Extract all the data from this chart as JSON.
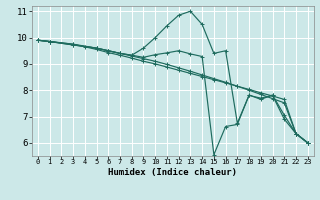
{
  "xlabel": "Humidex (Indice chaleur)",
  "ylabel": "",
  "bg_color": "#cce8e8",
  "grid_color": "#b8d8d8",
  "line_color": "#1e6b5e",
  "xlim": [
    -0.5,
    23.5
  ],
  "ylim": [
    5.5,
    11.2
  ],
  "xticks": [
    0,
    1,
    2,
    3,
    4,
    5,
    6,
    7,
    8,
    9,
    10,
    11,
    12,
    13,
    14,
    15,
    16,
    17,
    18,
    19,
    20,
    21,
    22,
    23
  ],
  "yticks": [
    6,
    7,
    8,
    9,
    10,
    11
  ],
  "lines": [
    {
      "x": [
        0,
        1,
        3,
        4,
        5,
        6,
        7,
        8,
        9,
        10,
        11,
        12,
        13,
        14,
        15,
        16,
        17,
        18,
        19,
        20,
        21,
        22,
        23
      ],
      "y": [
        9.9,
        9.85,
        9.75,
        9.65,
        9.55,
        9.43,
        9.33,
        9.22,
        9.1,
        9.0,
        8.88,
        8.76,
        8.64,
        8.52,
        8.4,
        8.28,
        8.15,
        8.03,
        7.9,
        7.78,
        7.65,
        6.35,
        6.0
      ]
    },
    {
      "x": [
        0,
        1,
        3,
        5,
        6,
        7,
        8,
        9,
        10,
        11,
        12,
        13,
        14,
        15,
        16,
        17,
        18,
        19,
        20,
        21,
        22,
        23
      ],
      "y": [
        9.9,
        9.85,
        9.75,
        9.6,
        9.5,
        9.4,
        9.3,
        9.2,
        9.1,
        8.98,
        8.85,
        8.72,
        8.58,
        8.44,
        8.3,
        8.15,
        8.0,
        7.84,
        7.68,
        7.52,
        6.35,
        6.0
      ]
    },
    {
      "x": [
        0,
        1,
        3,
        5,
        6,
        7,
        8,
        9,
        10,
        11,
        12,
        13,
        14,
        15,
        16,
        17,
        18,
        19,
        20,
        21,
        22,
        23
      ],
      "y": [
        9.9,
        9.85,
        9.72,
        9.6,
        9.5,
        9.4,
        9.33,
        9.6,
        10.0,
        10.45,
        10.85,
        11.0,
        10.5,
        9.4,
        9.5,
        6.75,
        7.8,
        7.7,
        7.8,
        6.9,
        6.35,
        6.0
      ]
    },
    {
      "x": [
        0,
        1,
        3,
        5,
        6,
        7,
        8,
        9,
        10,
        11,
        12,
        13,
        14,
        15,
        16,
        17,
        18,
        19,
        20,
        21,
        22,
        23
      ],
      "y": [
        9.9,
        9.85,
        9.72,
        9.6,
        9.5,
        9.4,
        9.33,
        9.25,
        9.35,
        9.42,
        9.5,
        9.38,
        9.28,
        5.55,
        6.62,
        6.7,
        7.82,
        7.65,
        7.82,
        7.05,
        6.35,
        6.0
      ]
    }
  ]
}
